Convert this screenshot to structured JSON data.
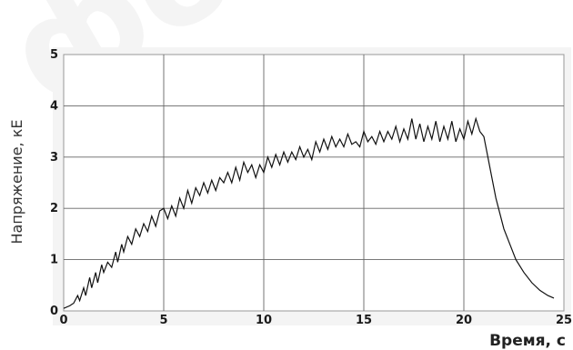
{
  "chart_data": {
    "type": "line",
    "title": "",
    "xlabel": "Время, с",
    "ylabel": "Напряжение, кЕ",
    "xlim": [
      0,
      25
    ],
    "ylim": [
      0,
      5
    ],
    "xticks": [
      "0",
      "5",
      "10",
      "15",
      "20",
      "25"
    ],
    "yticks": [
      "0",
      "1",
      "2",
      "3",
      "4",
      "5"
    ],
    "grid": true,
    "series": [
      {
        "values": [
          [
            0,
            0.05
          ],
          [
            0.3,
            0.1
          ],
          [
            0.5,
            0.15
          ],
          [
            0.7,
            0.3
          ],
          [
            0.8,
            0.2
          ],
          [
            1.0,
            0.45
          ],
          [
            1.1,
            0.3
          ],
          [
            1.3,
            0.65
          ],
          [
            1.4,
            0.45
          ],
          [
            1.6,
            0.75
          ],
          [
            1.7,
            0.55
          ],
          [
            1.9,
            0.9
          ],
          [
            2.0,
            0.75
          ],
          [
            2.2,
            0.95
          ],
          [
            2.4,
            0.85
          ],
          [
            2.6,
            1.15
          ],
          [
            2.7,
            0.95
          ],
          [
            2.9,
            1.3
          ],
          [
            3.0,
            1.15
          ],
          [
            3.2,
            1.45
          ],
          [
            3.4,
            1.3
          ],
          [
            3.6,
            1.6
          ],
          [
            3.8,
            1.45
          ],
          [
            4.0,
            1.7
          ],
          [
            4.2,
            1.55
          ],
          [
            4.4,
            1.85
          ],
          [
            4.6,
            1.65
          ],
          [
            4.8,
            1.95
          ],
          [
            5.0,
            2.0
          ],
          [
            5.2,
            1.8
          ],
          [
            5.4,
            2.05
          ],
          [
            5.6,
            1.85
          ],
          [
            5.8,
            2.2
          ],
          [
            6.0,
            2.0
          ],
          [
            6.2,
            2.35
          ],
          [
            6.4,
            2.1
          ],
          [
            6.6,
            2.4
          ],
          [
            6.8,
            2.25
          ],
          [
            7.0,
            2.5
          ],
          [
            7.2,
            2.3
          ],
          [
            7.4,
            2.55
          ],
          [
            7.6,
            2.35
          ],
          [
            7.8,
            2.6
          ],
          [
            8.0,
            2.5
          ],
          [
            8.2,
            2.7
          ],
          [
            8.4,
            2.5
          ],
          [
            8.6,
            2.8
          ],
          [
            8.8,
            2.55
          ],
          [
            9.0,
            2.9
          ],
          [
            9.2,
            2.7
          ],
          [
            9.4,
            2.85
          ],
          [
            9.6,
            2.6
          ],
          [
            9.8,
            2.85
          ],
          [
            10.0,
            2.7
          ],
          [
            10.2,
            3.0
          ],
          [
            10.4,
            2.8
          ],
          [
            10.6,
            3.05
          ],
          [
            10.8,
            2.85
          ],
          [
            11.0,
            3.1
          ],
          [
            11.2,
            2.9
          ],
          [
            11.4,
            3.1
          ],
          [
            11.6,
            2.95
          ],
          [
            11.8,
            3.2
          ],
          [
            12.0,
            3.0
          ],
          [
            12.2,
            3.15
          ],
          [
            12.4,
            2.95
          ],
          [
            12.6,
            3.3
          ],
          [
            12.8,
            3.1
          ],
          [
            13.0,
            3.35
          ],
          [
            13.2,
            3.15
          ],
          [
            13.4,
            3.4
          ],
          [
            13.6,
            3.2
          ],
          [
            13.8,
            3.35
          ],
          [
            14.0,
            3.2
          ],
          [
            14.2,
            3.45
          ],
          [
            14.4,
            3.25
          ],
          [
            14.6,
            3.3
          ],
          [
            14.8,
            3.2
          ],
          [
            15.0,
            3.5
          ],
          [
            15.2,
            3.3
          ],
          [
            15.4,
            3.4
          ],
          [
            15.6,
            3.25
          ],
          [
            15.8,
            3.5
          ],
          [
            16.0,
            3.3
          ],
          [
            16.2,
            3.5
          ],
          [
            16.4,
            3.35
          ],
          [
            16.6,
            3.6
          ],
          [
            16.8,
            3.3
          ],
          [
            17.0,
            3.55
          ],
          [
            17.2,
            3.35
          ],
          [
            17.4,
            3.75
          ],
          [
            17.6,
            3.35
          ],
          [
            17.8,
            3.65
          ],
          [
            18.0,
            3.3
          ],
          [
            18.2,
            3.6
          ],
          [
            18.4,
            3.35
          ],
          [
            18.6,
            3.7
          ],
          [
            18.8,
            3.3
          ],
          [
            19.0,
            3.6
          ],
          [
            19.2,
            3.35
          ],
          [
            19.4,
            3.7
          ],
          [
            19.6,
            3.3
          ],
          [
            19.8,
            3.55
          ],
          [
            20.0,
            3.35
          ],
          [
            20.2,
            3.7
          ],
          [
            20.4,
            3.45
          ],
          [
            20.6,
            3.75
          ],
          [
            20.8,
            3.5
          ],
          [
            21.0,
            3.4
          ],
          [
            21.2,
            3.0
          ],
          [
            21.4,
            2.6
          ],
          [
            21.6,
            2.2
          ],
          [
            21.8,
            1.9
          ],
          [
            22.0,
            1.6
          ],
          [
            22.3,
            1.3
          ],
          [
            22.6,
            1.0
          ],
          [
            23.0,
            0.75
          ],
          [
            23.4,
            0.55
          ],
          [
            23.8,
            0.4
          ],
          [
            24.2,
            0.3
          ],
          [
            24.5,
            0.25
          ]
        ]
      }
    ]
  },
  "colors": {
    "frame_fill": "#ffffff",
    "frame_edge": "#8a8a8a",
    "grid": "#666666",
    "line": "#111111"
  }
}
